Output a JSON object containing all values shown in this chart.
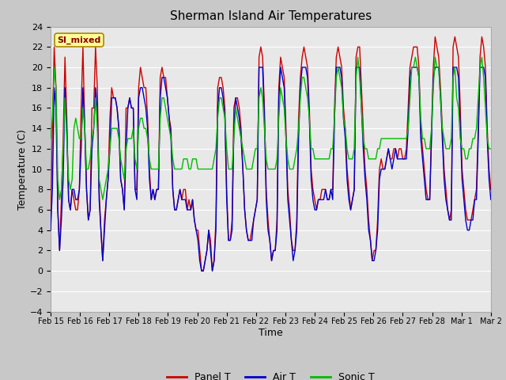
{
  "title": "Sherman Island Air Temperatures",
  "xlabel": "Time",
  "ylabel": "Temperature (C)",
  "ylim": [
    -4,
    24
  ],
  "yticks": [
    -4,
    -2,
    0,
    2,
    4,
    6,
    8,
    10,
    12,
    14,
    16,
    18,
    20,
    22,
    24
  ],
  "date_labels": [
    "Feb 15",
    "Feb 16",
    "Feb 17",
    "Feb 18",
    "Feb 19",
    "Feb 20",
    "Feb 21",
    "Feb 22",
    "Feb 23",
    "Feb 24",
    "Feb 25",
    "Feb 26",
    "Feb 27",
    "Feb 28",
    "Mar 1",
    "Mar 2"
  ],
  "panel_color": "#cc0000",
  "air_color": "#0000cc",
  "sonic_color": "#00bb00",
  "fig_bg": "#c8c8c8",
  "plot_bg": "#e8e8e8",
  "legend_label": "SI_mixed",
  "legend_box_facecolor": "#ffff99",
  "legend_text_color": "#880000",
  "legend_box_edgecolor": "#aa8800",
  "panel_t": [
    4,
    14,
    22,
    18,
    6,
    2,
    7,
    13,
    21,
    15,
    7,
    6,
    8,
    7,
    6,
    6,
    8,
    16,
    22,
    14,
    8,
    5,
    6,
    16,
    16,
    22,
    18,
    8,
    4,
    1,
    5,
    7,
    9,
    15,
    18,
    17,
    17,
    16,
    14,
    9,
    8,
    6,
    16,
    16,
    17,
    16,
    16,
    8,
    8,
    18,
    20,
    19,
    18,
    18,
    15,
    10,
    7,
    8,
    7,
    8,
    8,
    19,
    20,
    19,
    19,
    17,
    15,
    14,
    8,
    6,
    6,
    7,
    8,
    7,
    8,
    8,
    6,
    7,
    6,
    7,
    5,
    4,
    4,
    2,
    0,
    0,
    1,
    2,
    4,
    3,
    0,
    1,
    5,
    18,
    19,
    19,
    18,
    16,
    8,
    3,
    3,
    5,
    16,
    17,
    17,
    16,
    14,
    10,
    6,
    4,
    3,
    3,
    4,
    5,
    6,
    7,
    21,
    22,
    21,
    16,
    8,
    5,
    3,
    1,
    2,
    2,
    5,
    18,
    21,
    20,
    19,
    14,
    8,
    6,
    3,
    2,
    2,
    5,
    15,
    19,
    21,
    22,
    21,
    20,
    16,
    10,
    8,
    7,
    6,
    7,
    7,
    8,
    8,
    8,
    7,
    7,
    8,
    8,
    16,
    21,
    22,
    21,
    20,
    16,
    14,
    10,
    8,
    6,
    7,
    8,
    21,
    22,
    22,
    18,
    14,
    10,
    8,
    5,
    3,
    1,
    2,
    2,
    5,
    10,
    11,
    10,
    10,
    11,
    12,
    11,
    11,
    12,
    12,
    11,
    12,
    12,
    11,
    11,
    12,
    16,
    20,
    21,
    22,
    22,
    22,
    20,
    14,
    12,
    10,
    8,
    7,
    7,
    14,
    20,
    23,
    22,
    21,
    18,
    14,
    10,
    8,
    6,
    5,
    6,
    22,
    23,
    22,
    21,
    16,
    10,
    8,
    6,
    5,
    5,
    5,
    6,
    7,
    8,
    14,
    21,
    23,
    22,
    20,
    14,
    10,
    8
  ],
  "air_t": [
    4,
    8,
    18,
    16,
    6,
    2,
    5,
    9,
    18,
    14,
    7,
    6,
    8,
    8,
    7,
    7,
    8,
    12,
    18,
    14,
    8,
    5,
    6,
    12,
    14,
    18,
    16,
    7,
    4,
    1,
    4,
    7,
    9,
    12,
    17,
    17,
    17,
    16,
    14,
    9,
    8,
    6,
    12,
    16,
    17,
    16,
    16,
    8,
    7,
    17,
    18,
    18,
    17,
    16,
    14,
    9,
    7,
    8,
    7,
    8,
    8,
    17,
    19,
    19,
    18,
    17,
    15,
    13,
    8,
    6,
    6,
    7,
    8,
    7,
    7,
    7,
    6,
    6,
    6,
    7,
    5,
    4,
    3,
    1,
    0,
    0,
    1,
    2,
    4,
    2,
    0,
    1,
    4,
    16,
    18,
    18,
    17,
    15,
    7,
    3,
    3,
    4,
    14,
    17,
    16,
    15,
    13,
    10,
    6,
    4,
    3,
    3,
    3,
    5,
    6,
    7,
    20,
    20,
    20,
    15,
    7,
    4,
    3,
    1,
    2,
    2,
    4,
    17,
    20,
    19,
    18,
    13,
    7,
    5,
    3,
    1,
    2,
    4,
    13,
    18,
    20,
    20,
    20,
    19,
    15,
    9,
    7,
    6,
    6,
    7,
    7,
    7,
    7,
    8,
    7,
    7,
    8,
    7,
    15,
    20,
    20,
    20,
    19,
    15,
    13,
    9,
    7,
    6,
    7,
    8,
    20,
    20,
    20,
    16,
    12,
    9,
    7,
    4,
    3,
    1,
    1,
    2,
    4,
    9,
    10,
    10,
    10,
    11,
    12,
    11,
    10,
    11,
    12,
    11,
    11,
    11,
    11,
    11,
    11,
    14,
    19,
    20,
    20,
    20,
    20,
    19,
    13,
    11,
    9,
    7,
    7,
    7,
    13,
    19,
    20,
    20,
    20,
    17,
    13,
    9,
    7,
    6,
    5,
    5,
    20,
    20,
    20,
    19,
    14,
    9,
    7,
    5,
    4,
    4,
    5,
    5,
    7,
    7,
    13,
    20,
    20,
    20,
    19,
    13,
    9,
    7
  ],
  "sonic_t": [
    13,
    15,
    20,
    18,
    9,
    7,
    8,
    12,
    17,
    13,
    9,
    8,
    9,
    14,
    15,
    14,
    13,
    13,
    16,
    14,
    10,
    10,
    11,
    13,
    14,
    17,
    14,
    9,
    8,
    7,
    8,
    9,
    10,
    12,
    14,
    14,
    14,
    14,
    13,
    11,
    10,
    9,
    12,
    13,
    13,
    13,
    14,
    11,
    10,
    14,
    15,
    15,
    14,
    14,
    13,
    11,
    10,
    10,
    10,
    10,
    10,
    15,
    17,
    17,
    16,
    15,
    14,
    13,
    11,
    10,
    10,
    10,
    10,
    10,
    11,
    11,
    11,
    10,
    10,
    11,
    11,
    11,
    10,
    10,
    10,
    10,
    10,
    10,
    10,
    10,
    10,
    11,
    12,
    15,
    17,
    17,
    16,
    15,
    12,
    10,
    10,
    10,
    13,
    16,
    15,
    14,
    13,
    12,
    11,
    10,
    10,
    10,
    10,
    11,
    12,
    12,
    17,
    18,
    17,
    14,
    11,
    10,
    10,
    10,
    10,
    10,
    11,
    15,
    18,
    17,
    16,
    13,
    11,
    10,
    10,
    10,
    11,
    12,
    14,
    17,
    19,
    19,
    18,
    17,
    15,
    12,
    12,
    11,
    11,
    11,
    11,
    11,
    11,
    11,
    11,
    11,
    12,
    12,
    15,
    19,
    20,
    19,
    18,
    15,
    14,
    12,
    11,
    11,
    11,
    12,
    19,
    21,
    19,
    16,
    13,
    12,
    12,
    11,
    11,
    11,
    11,
    11,
    12,
    12,
    13,
    13,
    13,
    13,
    13,
    13,
    13,
    13,
    13,
    13,
    13,
    13,
    13,
    13,
    13,
    14,
    17,
    20,
    20,
    21,
    20,
    19,
    15,
    13,
    13,
    12,
    12,
    12,
    14,
    18,
    21,
    20,
    20,
    17,
    14,
    13,
    12,
    12,
    12,
    13,
    19,
    20,
    17,
    16,
    13,
    12,
    12,
    11,
    11,
    12,
    12,
    13,
    13,
    14,
    17,
    20,
    21,
    19,
    16,
    13,
    12,
    12
  ]
}
